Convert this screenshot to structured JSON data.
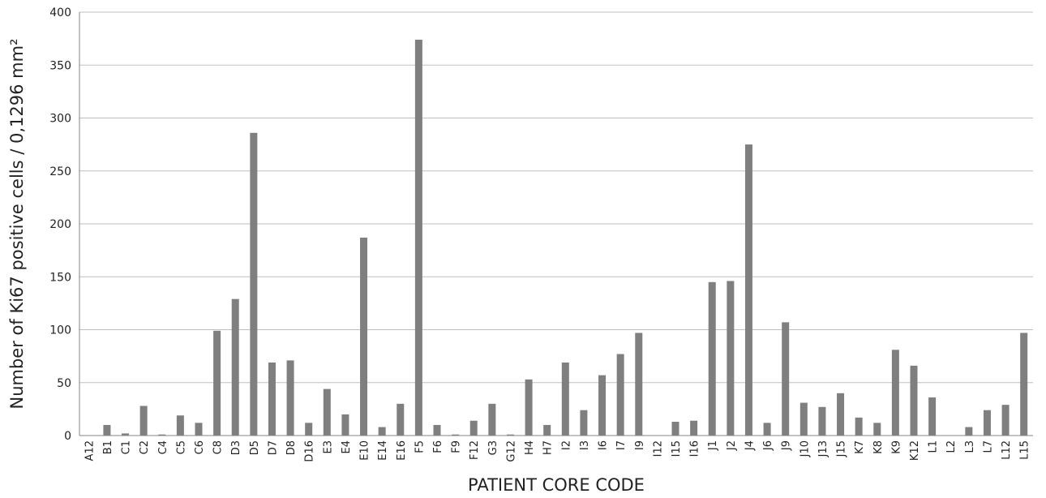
{
  "chart_data": {
    "type": "bar",
    "title": "",
    "xlabel": "PATIENT CORE CODE",
    "ylabel": "Number of  Ki67 positive cells / 0,1296 mm²",
    "ylim": [
      0,
      400
    ],
    "yticks": [
      "0",
      "50",
      "100",
      "150",
      "200",
      "250",
      "300",
      "350",
      "400"
    ],
    "grid": true,
    "legend": "none",
    "bar_color": "#7f7f7f",
    "categories": [
      "A12",
      "B1",
      "C1",
      "C2",
      "C4",
      "C5",
      "C6",
      "C8",
      "D3",
      "D5",
      "D7",
      "D8",
      "D16",
      "E3",
      "E4",
      "E10",
      "E14",
      "E16",
      "F5",
      "F6",
      "F9",
      "F12",
      "G3",
      "G12",
      "H4",
      "H7",
      "I2",
      "I3",
      "I6",
      "I7",
      "I9",
      "I12",
      "I15",
      "I16",
      "J1",
      "J2",
      "J4",
      "J6",
      "J9",
      "J10",
      "J13",
      "J15",
      "K7",
      "K8",
      "K9",
      "K12",
      "L1",
      "L2",
      "L3",
      "L7",
      "L12",
      "L15"
    ],
    "values": [
      0,
      10,
      2,
      28,
      1,
      19,
      12,
      99,
      129,
      286,
      69,
      71,
      12,
      44,
      20,
      187,
      8,
      30,
      374,
      10,
      1,
      14,
      30,
      1,
      53,
      10,
      69,
      24,
      57,
      77,
      97,
      0,
      13,
      14,
      145,
      146,
      275,
      12,
      107,
      31,
      27,
      40,
      17,
      12,
      81,
      66,
      36,
      0,
      8,
      24,
      29,
      97
    ]
  }
}
